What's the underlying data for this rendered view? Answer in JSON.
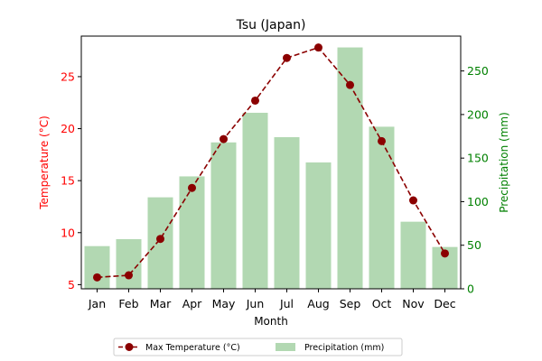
{
  "chart_data": {
    "type": "bar",
    "title": "Tsu (Japan)",
    "xlabel": "Month",
    "ylabel_left": "Temperature (°C)",
    "ylabel_right": "Precipitation (mm)",
    "categories": [
      "Jan",
      "Feb",
      "Mar",
      "Apr",
      "May",
      "Jun",
      "Jul",
      "Aug",
      "Sep",
      "Oct",
      "Nov",
      "Dec"
    ],
    "left_axis": {
      "range": [
        4.6,
        28.9
      ],
      "ticks": [
        5,
        10,
        15,
        20,
        25
      ],
      "color": "#ff0000"
    },
    "right_axis": {
      "range": [
        0,
        290
      ],
      "ticks": [
        0,
        50,
        100,
        150,
        200,
        250
      ],
      "color": "#008000"
    },
    "grid": false,
    "legend_position": "bottom-center",
    "series": [
      {
        "name": "Max Temperature (°C)",
        "type": "line",
        "axis": "left",
        "color": "#8b0000",
        "line_style": "dashed",
        "marker": "circle",
        "values": [
          5.7,
          5.9,
          9.4,
          14.3,
          19.0,
          22.7,
          26.8,
          27.8,
          24.2,
          18.8,
          13.1,
          8.0
        ]
      },
      {
        "name": "Precipitation (mm)",
        "type": "bar",
        "axis": "right",
        "color": "#b2d8b2",
        "values": [
          49,
          57,
          105,
          129,
          168,
          202,
          174,
          145,
          277,
          186,
          77,
          48
        ]
      }
    ]
  }
}
